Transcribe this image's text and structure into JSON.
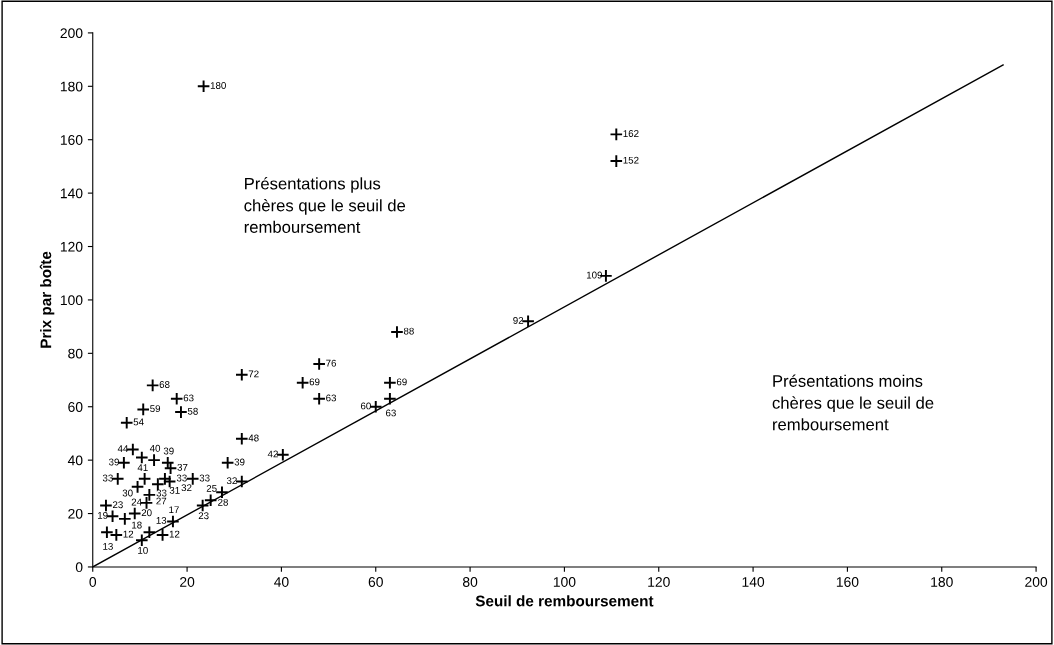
{
  "chart_data": {
    "type": "scatter",
    "xlabel": "Seuil de remboursement",
    "ylabel": "Prix par boîte",
    "xlim": [
      0,
      200
    ],
    "ylim": [
      0,
      200
    ],
    "xticks": [
      0,
      20,
      40,
      60,
      80,
      100,
      120,
      140,
      160,
      180,
      200
    ],
    "yticks": [
      0,
      20,
      40,
      60,
      80,
      100,
      120,
      140,
      160,
      180,
      200
    ],
    "grid": false,
    "marker": "cross",
    "series": [
      {
        "color": "#000000",
        "x": [
          23.5,
          111,
          111,
          108.8,
          92.3,
          64.5,
          48,
          44.5,
          63,
          48,
          63,
          60,
          31.6,
          31.6,
          40.3,
          28.6,
          31.6,
          27.4,
          23.3,
          25,
          12.7,
          17.8,
          10.7,
          18.7,
          7.2,
          8.5,
          6.6,
          10.4,
          13,
          15.9,
          16.5,
          5.3,
          11,
          15.3,
          21.2,
          9.5,
          13.8,
          16.3,
          12,
          11.4,
          2.8,
          8.9,
          4.2,
          6.8,
          17,
          12,
          3,
          5,
          10.4,
          14.8
        ],
        "values": [
          180,
          162,
          152,
          109,
          92,
          88,
          76,
          69,
          69,
          63,
          63,
          60,
          72,
          48,
          42,
          39,
          32,
          28,
          23,
          25,
          68,
          63,
          59,
          58,
          54,
          44,
          39,
          41,
          40,
          39,
          37,
          33,
          33,
          33,
          33,
          30,
          31,
          32,
          27,
          24,
          23,
          20,
          19,
          18,
          17,
          13,
          13,
          12,
          10,
          12
        ],
        "value_labels": [
          "180",
          "162",
          "152",
          "109",
          "92",
          "88",
          "76",
          "69",
          "69",
          "63",
          "63",
          "60",
          "72",
          "48",
          "42",
          "39",
          "32",
          "28",
          "23",
          "25",
          "68",
          "63",
          "59",
          "58",
          "54",
          "44",
          "39",
          "41",
          "40",
          "39",
          "37",
          "33",
          "33",
          "33",
          "33",
          "30",
          "31",
          "32",
          "27",
          "24",
          "23",
          "20",
          "19",
          "18",
          "17",
          "13",
          "13",
          "12",
          "10",
          "12"
        ]
      },
      {
        "type": "line",
        "color": "#000000",
        "x": [
          0,
          193
        ],
        "values": [
          0,
          188
        ],
        "marker": "none",
        "line_style": "solid"
      }
    ],
    "annotations": [
      "Présentations plus\nchères que le seuil de\nremboursement",
      "Présentations moins\nchères que le seuil de\nremboursement"
    ]
  }
}
